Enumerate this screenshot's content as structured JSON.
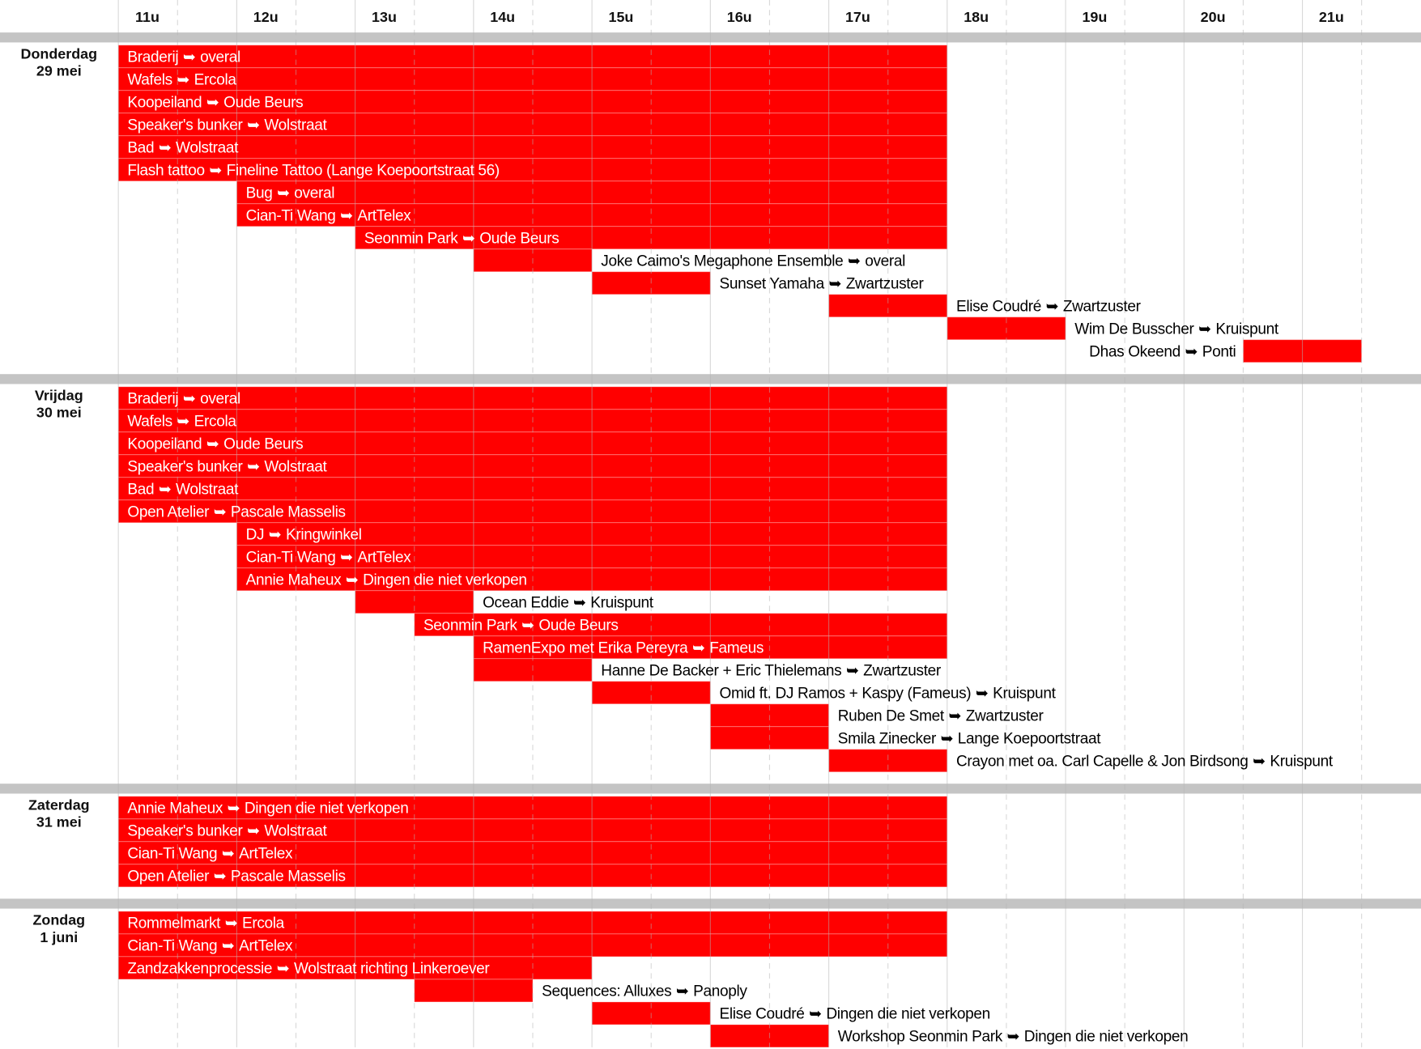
{
  "chart_data": {
    "type": "gantt",
    "color": "#ff0000",
    "connector": "➥",
    "xlim": [
      11,
      21.5
    ],
    "xticks": [
      {
        "value": 11,
        "label": "11u"
      },
      {
        "value": 12,
        "label": "12u"
      },
      {
        "value": 13,
        "label": "13u"
      },
      {
        "value": 14,
        "label": "14u"
      },
      {
        "value": 15,
        "label": "15u"
      },
      {
        "value": 16,
        "label": "16u"
      },
      {
        "value": 17,
        "label": "17u"
      },
      {
        "value": 18,
        "label": "18u"
      },
      {
        "value": 19,
        "label": "19u"
      },
      {
        "value": 20,
        "label": "20u"
      },
      {
        "value": 21,
        "label": "21u"
      }
    ],
    "minor_xticks": [
      11.5,
      12.5,
      13.5,
      14.5,
      15.5,
      16.5,
      17.5,
      18.5,
      19.5,
      20.5,
      21.5
    ],
    "grid": true,
    "days": [
      {
        "day": "Donderdag",
        "date": "29 mei",
        "events": [
          {
            "name": "Braderij",
            "place": "overal",
            "start": 11,
            "end": 18
          },
          {
            "name": "Wafels",
            "place": "Ercola",
            "start": 11,
            "end": 18
          },
          {
            "name": "Koopeiland",
            "place": "Oude Beurs",
            "start": 11,
            "end": 18
          },
          {
            "name": "Speaker's bunker",
            "place": "Wolstraat",
            "start": 11,
            "end": 18
          },
          {
            "name": "Bad",
            "place": "Wolstraat",
            "start": 11,
            "end": 18
          },
          {
            "name": "Flash tattoo",
            "place": "Fineline Tattoo (Lange Koepoortstraat 56)",
            "start": 11,
            "end": 18
          },
          {
            "name": "Bug",
            "place": "overal",
            "start": 12,
            "end": 18
          },
          {
            "name": "Cian-Ti Wang",
            "place": "ArtTelex",
            "start": 12,
            "end": 18
          },
          {
            "name": "Seonmin Park",
            "place": "Oude Beurs",
            "start": 13,
            "end": 18
          },
          {
            "name": "Joke Caimo's Megaphone Ensemble",
            "place": "overal",
            "start": 14,
            "end": 15
          },
          {
            "name": "Sunset Yamaha",
            "place": "Zwartzuster",
            "start": 15,
            "end": 16
          },
          {
            "name": "Elise Coudré",
            "place": "Zwartzuster",
            "start": 17,
            "end": 18
          },
          {
            "name": "Wim De Busscher",
            "place": "Kruispunt",
            "start": 18,
            "end": 19
          },
          {
            "name": "Dhas Okeend",
            "place": "Ponti",
            "start": 20.5,
            "end": 21.5
          }
        ]
      },
      {
        "day": "Vrijdag",
        "date": "30 mei",
        "events": [
          {
            "name": "Braderij",
            "place": "overal",
            "start": 11,
            "end": 18
          },
          {
            "name": "Wafels",
            "place": "Ercola",
            "start": 11,
            "end": 18
          },
          {
            "name": "Koopeiland",
            "place": "Oude Beurs",
            "start": 11,
            "end": 18
          },
          {
            "name": "Speaker's bunker",
            "place": "Wolstraat",
            "start": 11,
            "end": 18
          },
          {
            "name": "Bad",
            "place": "Wolstraat",
            "start": 11,
            "end": 18
          },
          {
            "name": "Open Atelier",
            "place": "Pascale Masselis",
            "start": 11,
            "end": 18
          },
          {
            "name": "DJ",
            "place": "Kringwinkel",
            "start": 12,
            "end": 18
          },
          {
            "name": "Cian-Ti Wang",
            "place": "ArtTelex",
            "start": 12,
            "end": 18
          },
          {
            "name": "Annie Maheux",
            "place": "Dingen die niet verkopen",
            "start": 12,
            "end": 18
          },
          {
            "name": "Ocean Eddie",
            "place": "Kruispunt",
            "start": 13,
            "end": 14
          },
          {
            "name": "Seonmin Park",
            "place": "Oude Beurs",
            "start": 13.5,
            "end": 18
          },
          {
            "name": "RamenExpo met Erika Pereyra",
            "place": "Fameus",
            "start": 14,
            "end": 18
          },
          {
            "name": "Hanne De Backer + Eric Thielemans",
            "place": "Zwartzuster",
            "start": 14,
            "end": 15
          },
          {
            "name": "Omid ft. DJ Ramos + Kaspy (Fameus)",
            "place": "Kruispunt",
            "start": 15,
            "end": 16
          },
          {
            "name": "Ruben De Smet",
            "place": "Zwartzuster",
            "start": 16,
            "end": 17
          },
          {
            "name": "Smila Zinecker",
            "place": "Lange Koepoortstraat",
            "start": 16,
            "end": 17
          },
          {
            "name": "Crayon met oa. Carl Capelle & Jon Birdsong",
            "place": "Kruispunt",
            "start": 17,
            "end": 18
          }
        ]
      },
      {
        "day": "Zaterdag",
        "date": "31 mei",
        "events": [
          {
            "name": "Annie Maheux",
            "place": "Dingen die niet verkopen",
            "start": 11,
            "end": 18
          },
          {
            "name": "Speaker's bunker",
            "place": "Wolstraat",
            "start": 11,
            "end": 18
          },
          {
            "name": "Cian-Ti Wang",
            "place": "ArtTelex",
            "start": 11,
            "end": 18
          },
          {
            "name": "Open Atelier",
            "place": "Pascale Masselis",
            "start": 11,
            "end": 18
          }
        ]
      },
      {
        "day": "Zondag",
        "date": "1 juni",
        "events": [
          {
            "name": "Rommelmarkt",
            "place": "Ercola",
            "start": 11,
            "end": 18
          },
          {
            "name": "Cian-Ti Wang",
            "place": "ArtTelex",
            "start": 11,
            "end": 18
          },
          {
            "name": "Zandzakkenprocessie",
            "place": "Wolstraat richting Linkeroever",
            "start": 11,
            "end": 15
          },
          {
            "name": "Sequences: Alluxes",
            "place": "Panoply",
            "start": 13.5,
            "end": 14.5
          },
          {
            "name": "Elise Coudré",
            "place": "Dingen die niet verkopen",
            "start": 15,
            "end": 16
          },
          {
            "name": "Workshop Seonmin Park",
            "place": "Dingen die niet verkopen",
            "start": 16,
            "end": 17
          }
        ]
      }
    ]
  }
}
